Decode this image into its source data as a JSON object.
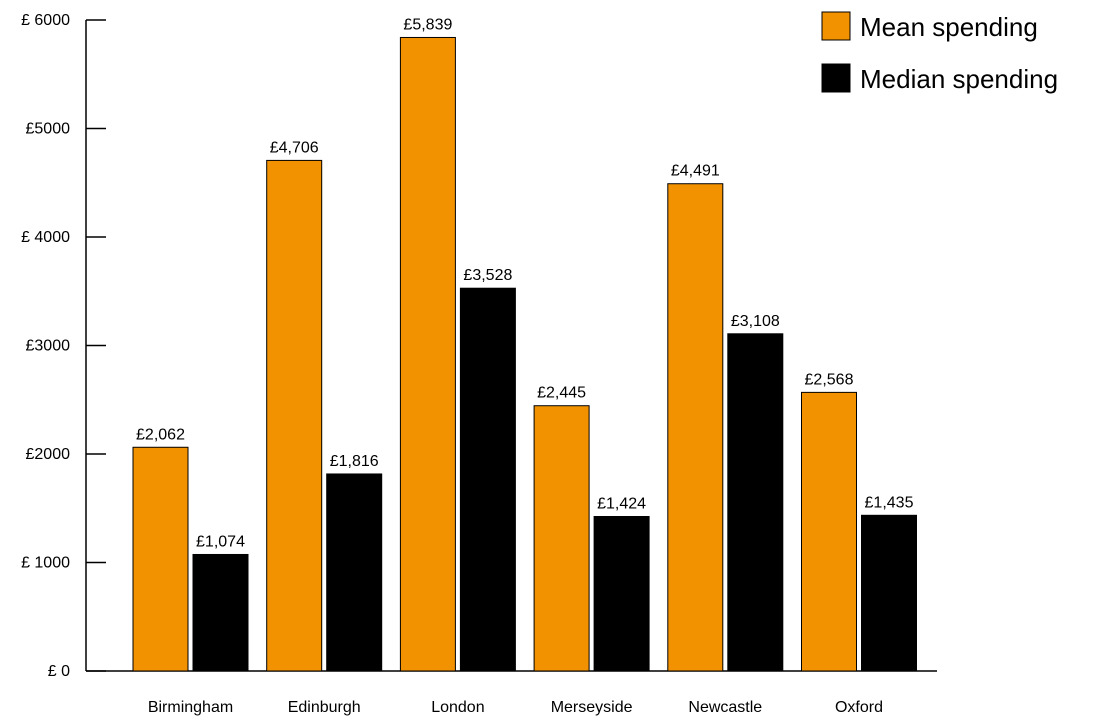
{
  "chart_data": {
    "type": "bar",
    "categories": [
      "Birmingham",
      "Edinburgh",
      "London",
      "Merseyside",
      "Newcastle",
      "Oxford"
    ],
    "series": [
      {
        "name": "Mean spending",
        "color": "#f39200",
        "values": [
          2062,
          4706,
          5839,
          2445,
          4491,
          2568
        ],
        "labels": [
          "£2,062",
          "£4,706",
          "£5,839",
          "£2,445",
          "£4,491",
          "£2,568"
        ]
      },
      {
        "name": "Median spending",
        "color": "#000000",
        "values": [
          1074,
          1816,
          3528,
          1424,
          3108,
          1435
        ],
        "labels": [
          "£1,074",
          "£1,816",
          "£3,528",
          "£1,424",
          "£3,108",
          "£1,435"
        ]
      }
    ],
    "y_ticks": [
      0,
      1000,
      2000,
      3000,
      4000,
      5000,
      6000
    ],
    "y_tick_labels": [
      "£ 0",
      "£ 1000",
      "£2000",
      "£3000",
      "£ 4000",
      "£5000",
      "£ 6000"
    ],
    "ylim": [
      0,
      6000
    ],
    "title": "",
    "xlabel": "",
    "ylabel": "",
    "grid": false,
    "legend_position": "top-right"
  }
}
